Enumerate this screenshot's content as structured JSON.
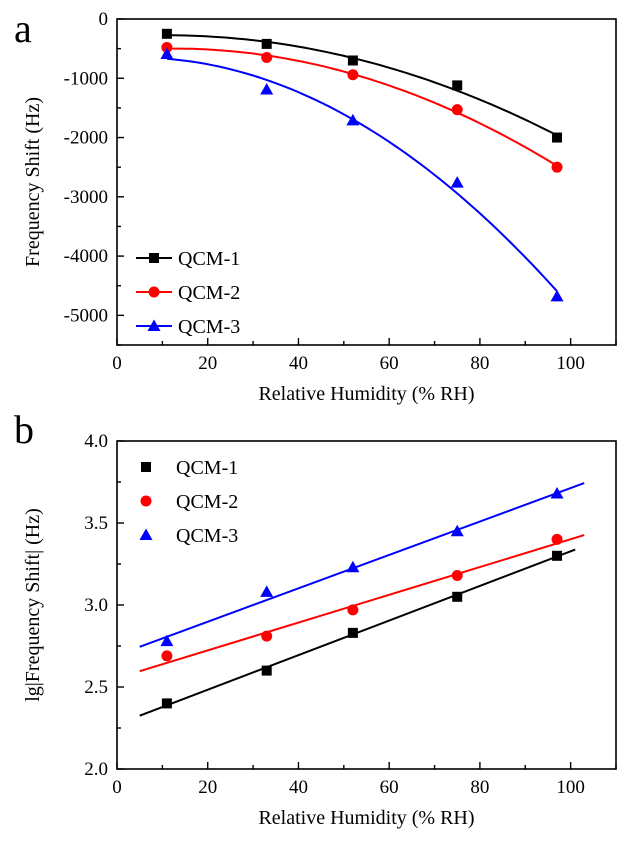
{
  "figure": {
    "background": "#ffffff"
  },
  "chart_data": [
    {
      "panel": "a",
      "type": "scatter",
      "xlabel": "Relative Humidity (% RH)",
      "ylabel": "Frequency Shift (Hz)",
      "xlim": [
        0,
        110
      ],
      "ylim": [
        -5500,
        0
      ],
      "xticks": [
        0,
        20,
        40,
        60,
        80,
        100
      ],
      "yticks": [
        0,
        -1000,
        -2000,
        -3000,
        -4000,
        -5000
      ],
      "grid": false,
      "legend_position": "bottom-left",
      "fit": "quadratic",
      "series": [
        {
          "name": "QCM-1",
          "color": "#000000",
          "marker": "square",
          "x": [
            11,
            33,
            52,
            75,
            97
          ],
          "y": [
            -250,
            -420,
            -700,
            -1120,
            -2000
          ]
        },
        {
          "name": "QCM-2",
          "color": "#ff0000",
          "marker": "circle",
          "x": [
            11,
            33,
            52,
            75,
            97
          ],
          "y": [
            -480,
            -650,
            -940,
            -1530,
            -2500
          ]
        },
        {
          "name": "QCM-3",
          "color": "#0000ff",
          "marker": "triangle",
          "x": [
            11,
            33,
            52,
            75,
            97
          ],
          "y": [
            -590,
            -1190,
            -1710,
            -2760,
            -4680
          ]
        }
      ]
    },
    {
      "panel": "b",
      "type": "scatter",
      "xlabel": "Relative Humidity (% RH)",
      "ylabel": "lg|Frequency Shift| (Hz)",
      "xlim": [
        0,
        110
      ],
      "ylim": [
        2.0,
        4.0
      ],
      "xticks": [
        0,
        20,
        40,
        60,
        80,
        100
      ],
      "yticks": [
        2.0,
        2.5,
        3.0,
        3.5,
        4.0
      ],
      "grid": false,
      "legend_position": "top-left",
      "fit": "linear",
      "series": [
        {
          "name": "QCM-1",
          "color": "#000000",
          "marker": "square",
          "x": [
            11,
            33,
            52,
            75,
            97
          ],
          "y": [
            2.4,
            2.6,
            2.83,
            3.05,
            3.3
          ],
          "fit_line": {
            "slope": 0.01055,
            "intercept": 2.272,
            "x_range": [
              5,
              101
            ]
          }
        },
        {
          "name": "QCM-2",
          "color": "#ff0000",
          "marker": "circle",
          "x": [
            11,
            33,
            52,
            75,
            97
          ],
          "y": [
            2.69,
            2.81,
            2.97,
            3.18,
            3.4
          ],
          "fit_line": {
            "slope": 0.00847,
            "intercept": 2.554,
            "x_range": [
              5,
              103
            ]
          }
        },
        {
          "name": "QCM-3",
          "color": "#0000ff",
          "marker": "triangle",
          "x": [
            11,
            33,
            52,
            75,
            97
          ],
          "y": [
            2.78,
            3.08,
            3.23,
            3.45,
            3.68
          ],
          "fit_line": {
            "slope": 0.01019,
            "intercept": 2.694,
            "x_range": [
              5,
              103
            ]
          }
        }
      ]
    }
  ]
}
